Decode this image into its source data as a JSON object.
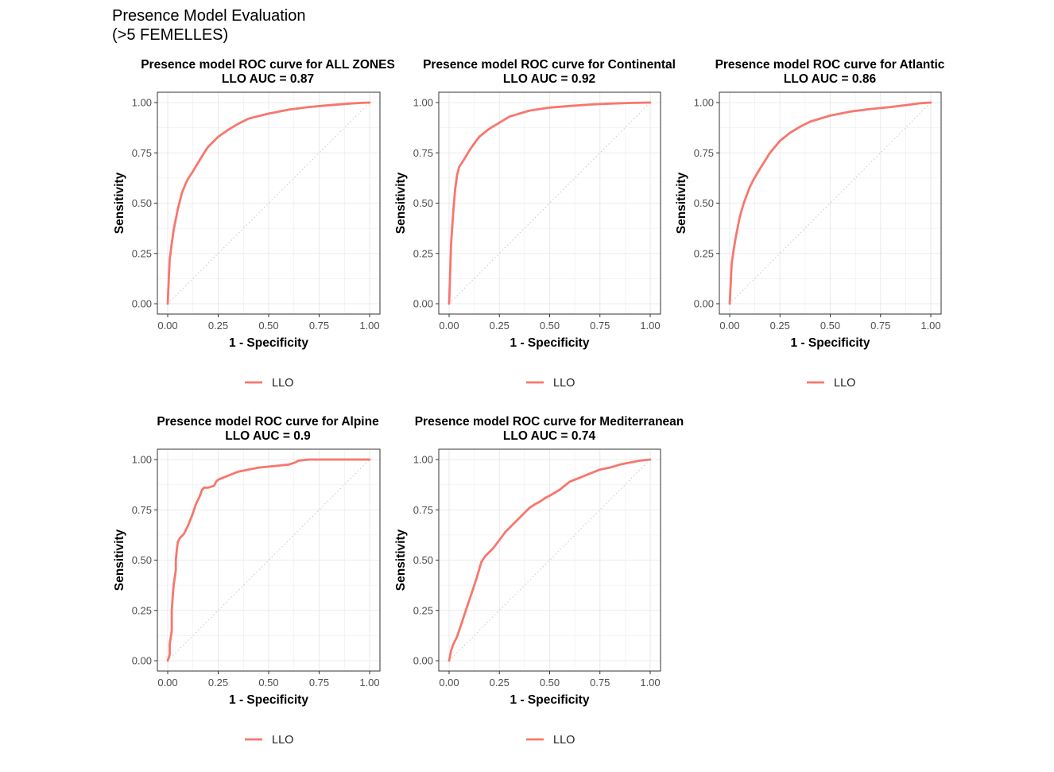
{
  "figure": {
    "title_line1": "Presence Model Evaluation",
    "title_line2": "(>5 FEMELLES)"
  },
  "colors": {
    "curve": "#F8766D",
    "panel_border": "#333333",
    "grid": "#EBEBEB",
    "diagonal": "#C8C8C8",
    "tick_text": "#4D4D4D"
  },
  "chart_data": [
    {
      "type": "line",
      "title": "Presence model ROC curve for ALL ZONES",
      "subtitle": "LLO AUC = 0.87",
      "xlabel": "1 - Specificity",
      "ylabel": "Sensitivity",
      "xlim": [
        0,
        1
      ],
      "ylim": [
        0,
        1
      ],
      "x_ticks": [
        "0.00",
        "0.25",
        "0.50",
        "0.75",
        "1.00"
      ],
      "y_ticks": [
        "0.00",
        "0.25",
        "0.50",
        "0.75",
        "1.00"
      ],
      "grid": true,
      "reference_line": "diagonal",
      "legend": {
        "position": "bottom",
        "entries": [
          "LLO"
        ]
      },
      "series": [
        {
          "name": "LLO",
          "x": [
            0.0,
            0.005,
            0.01,
            0.02,
            0.03,
            0.05,
            0.07,
            0.09,
            0.1,
            0.12,
            0.15,
            0.18,
            0.2,
            0.25,
            0.3,
            0.35,
            0.4,
            0.5,
            0.6,
            0.7,
            0.8,
            0.9,
            0.95,
            1.0
          ],
          "y": [
            0.0,
            0.12,
            0.22,
            0.3,
            0.37,
            0.47,
            0.55,
            0.6,
            0.62,
            0.65,
            0.7,
            0.75,
            0.78,
            0.83,
            0.865,
            0.895,
            0.92,
            0.945,
            0.965,
            0.978,
            0.987,
            0.995,
            0.998,
            1.0
          ]
        }
      ]
    },
    {
      "type": "line",
      "title": "Presence model ROC curve for Continental",
      "subtitle": "LLO AUC = 0.92",
      "xlabel": "1 - Specificity",
      "ylabel": "Sensitivity",
      "xlim": [
        0,
        1
      ],
      "ylim": [
        0,
        1
      ],
      "x_ticks": [
        "0.00",
        "0.25",
        "0.50",
        "0.75",
        "1.00"
      ],
      "y_ticks": [
        "0.00",
        "0.25",
        "0.50",
        "0.75",
        "1.00"
      ],
      "grid": true,
      "reference_line": "diagonal",
      "legend": {
        "position": "bottom",
        "entries": [
          "LLO"
        ]
      },
      "series": [
        {
          "name": "LLO",
          "x": [
            0.0,
            0.005,
            0.01,
            0.02,
            0.03,
            0.04,
            0.05,
            0.07,
            0.1,
            0.12,
            0.15,
            0.2,
            0.25,
            0.3,
            0.4,
            0.5,
            0.6,
            0.7,
            0.8,
            0.9,
            1.0
          ],
          "y": [
            0.0,
            0.15,
            0.3,
            0.45,
            0.57,
            0.64,
            0.68,
            0.71,
            0.76,
            0.79,
            0.83,
            0.87,
            0.9,
            0.93,
            0.96,
            0.975,
            0.983,
            0.99,
            0.995,
            0.998,
            1.0
          ]
        }
      ]
    },
    {
      "type": "line",
      "title": "Presence model ROC curve for Atlantic",
      "subtitle": "LLO AUC = 0.86",
      "xlabel": "1 - Specificity",
      "ylabel": "Sensitivity",
      "xlim": [
        0,
        1
      ],
      "ylim": [
        0,
        1
      ],
      "x_ticks": [
        "0.00",
        "0.25",
        "0.50",
        "0.75",
        "1.00"
      ],
      "y_ticks": [
        "0.00",
        "0.25",
        "0.50",
        "0.75",
        "1.00"
      ],
      "grid": true,
      "reference_line": "diagonal",
      "legend": {
        "position": "bottom",
        "entries": [
          "LLO"
        ]
      },
      "series": [
        {
          "name": "LLO",
          "x": [
            0.0,
            0.005,
            0.01,
            0.02,
            0.03,
            0.05,
            0.07,
            0.1,
            0.12,
            0.15,
            0.2,
            0.25,
            0.3,
            0.35,
            0.4,
            0.5,
            0.6,
            0.7,
            0.8,
            0.9,
            0.95,
            1.0
          ],
          "y": [
            0.0,
            0.1,
            0.2,
            0.27,
            0.33,
            0.43,
            0.5,
            0.58,
            0.62,
            0.67,
            0.75,
            0.81,
            0.85,
            0.88,
            0.905,
            0.935,
            0.955,
            0.968,
            0.978,
            0.99,
            0.997,
            1.0
          ]
        }
      ]
    },
    {
      "type": "line",
      "title": "Presence model ROC curve for Alpine",
      "subtitle": "LLO AUC = 0.9",
      "xlabel": "1 - Specificity",
      "ylabel": "Sensitivity",
      "xlim": [
        0,
        1
      ],
      "ylim": [
        0,
        1
      ],
      "x_ticks": [
        "0.00",
        "0.25",
        "0.50",
        "0.75",
        "1.00"
      ],
      "y_ticks": [
        "0.00",
        "0.25",
        "0.50",
        "0.75",
        "1.00"
      ],
      "grid": true,
      "reference_line": "diagonal",
      "legend": {
        "position": "bottom",
        "entries": [
          "LLO"
        ]
      },
      "series": [
        {
          "name": "LLO",
          "x": [
            0.0,
            0.01,
            0.01,
            0.02,
            0.02,
            0.025,
            0.03,
            0.04,
            0.04,
            0.045,
            0.05,
            0.06,
            0.08,
            0.09,
            0.1,
            0.12,
            0.14,
            0.16,
            0.17,
            0.18,
            0.2,
            0.23,
            0.24,
            0.25,
            0.3,
            0.35,
            0.4,
            0.45,
            0.5,
            0.55,
            0.6,
            0.63,
            0.65,
            0.7,
            0.8,
            0.9,
            1.0
          ],
          "y": [
            0.0,
            0.03,
            0.08,
            0.15,
            0.25,
            0.32,
            0.38,
            0.45,
            0.5,
            0.55,
            0.59,
            0.61,
            0.63,
            0.65,
            0.67,
            0.72,
            0.78,
            0.82,
            0.85,
            0.86,
            0.86,
            0.87,
            0.89,
            0.9,
            0.92,
            0.94,
            0.95,
            0.96,
            0.965,
            0.97,
            0.975,
            0.985,
            0.995,
            1.0,
            1.0,
            1.0,
            1.0
          ]
        }
      ]
    },
    {
      "type": "line",
      "title": "Presence model ROC curve for Mediterranean",
      "subtitle": "LLO AUC = 0.74",
      "xlabel": "1 - Specificity",
      "ylabel": "Sensitivity",
      "xlim": [
        0,
        1
      ],
      "ylim": [
        0,
        1
      ],
      "x_ticks": [
        "0.00",
        "0.25",
        "0.50",
        "0.75",
        "1.00"
      ],
      "y_ticks": [
        "0.00",
        "0.25",
        "0.50",
        "0.75",
        "1.00"
      ],
      "grid": true,
      "reference_line": "diagonal",
      "legend": {
        "position": "bottom",
        "entries": [
          "LLO"
        ]
      },
      "series": [
        {
          "name": "LLO",
          "x": [
            0.0,
            0.01,
            0.02,
            0.04,
            0.06,
            0.08,
            0.1,
            0.12,
            0.14,
            0.16,
            0.18,
            0.2,
            0.22,
            0.25,
            0.28,
            0.3,
            0.33,
            0.35,
            0.38,
            0.4,
            0.43,
            0.45,
            0.48,
            0.5,
            0.55,
            0.6,
            0.65,
            0.7,
            0.75,
            0.8,
            0.85,
            0.9,
            0.95,
            1.0
          ],
          "y": [
            0.0,
            0.05,
            0.08,
            0.12,
            0.18,
            0.24,
            0.3,
            0.36,
            0.42,
            0.49,
            0.52,
            0.54,
            0.56,
            0.6,
            0.64,
            0.66,
            0.69,
            0.71,
            0.74,
            0.76,
            0.78,
            0.79,
            0.81,
            0.82,
            0.85,
            0.89,
            0.91,
            0.93,
            0.95,
            0.96,
            0.975,
            0.985,
            0.995,
            1.0
          ]
        }
      ]
    }
  ]
}
